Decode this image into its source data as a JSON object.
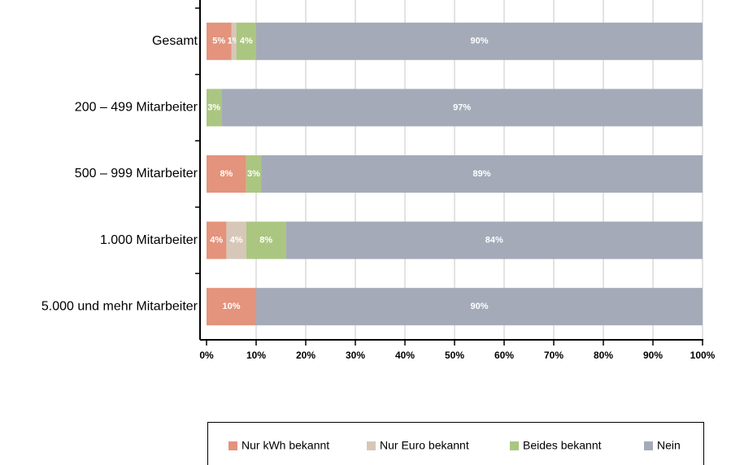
{
  "chart_data": {
    "type": "stacked_barh",
    "categories": [
      "Gesamt",
      "200 – 499 Mitarbeiter",
      "500 – 999 Mitarbeiter",
      "1.000 Mitarbeiter",
      "5.000 und mehr Mitarbeiter"
    ],
    "series": [
      {
        "name": "Nur kWh bekannt",
        "color": "#e4937c",
        "values": [
          5,
          null,
          8,
          4,
          10
        ],
        "value_labels": [
          "5%",
          null,
          "8%",
          "4%",
          "10%"
        ]
      },
      {
        "name": "Nur Euro bekannt",
        "color": "#d6c7b8",
        "values": [
          1,
          null,
          null,
          4,
          null
        ],
        "value_labels": [
          "1%",
          null,
          null,
          "4%",
          null
        ]
      },
      {
        "name": "Beides bekannt",
        "color": "#abc681",
        "values": [
          4,
          3,
          3,
          8,
          null
        ],
        "value_labels": [
          "4%",
          "3%",
          "3%",
          "8%",
          null
        ]
      },
      {
        "name": "Nein",
        "color": "#a4aab8",
        "values": [
          90,
          97,
          89,
          84,
          90
        ],
        "value_labels": [
          "90%",
          "97%",
          "89%",
          "84%",
          "90%"
        ]
      }
    ],
    "xlim": [
      0,
      100
    ],
    "xticks": [
      {
        "value": 0,
        "label": "0%"
      },
      {
        "value": 10,
        "label": "10%"
      },
      {
        "value": 20,
        "label": "20%"
      },
      {
        "value": 30,
        "label": "30%"
      },
      {
        "value": 40,
        "label": "40%"
      },
      {
        "value": 50,
        "label": "50%"
      },
      {
        "value": 60,
        "label": "60%"
      },
      {
        "value": 70,
        "label": "70%"
      },
      {
        "value": 80,
        "label": "80%"
      },
      {
        "value": 90,
        "label": "90%"
      },
      {
        "value": 100,
        "label": "100%"
      }
    ],
    "grid": true,
    "legend": "bottom"
  }
}
